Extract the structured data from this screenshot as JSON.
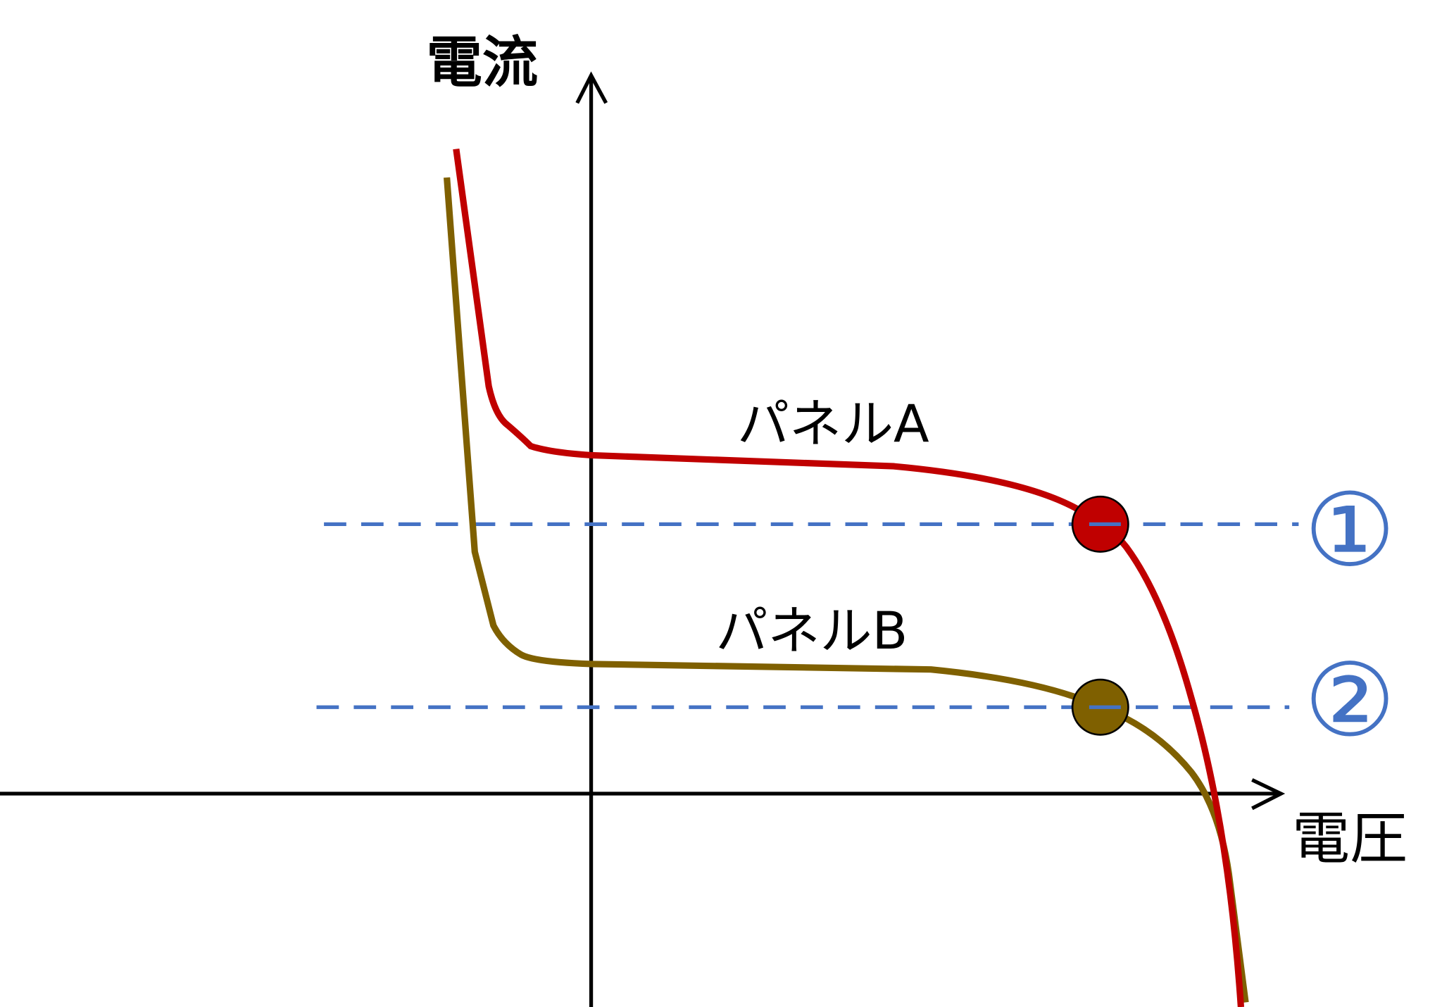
{
  "axes": {
    "y_label": "電流",
    "x_label": "電圧"
  },
  "curves": [
    {
      "label": "パネルA"
    },
    {
      "label": "パネルB"
    }
  ],
  "markers": [
    {
      "label": "①"
    },
    {
      "label": "②"
    }
  ]
}
